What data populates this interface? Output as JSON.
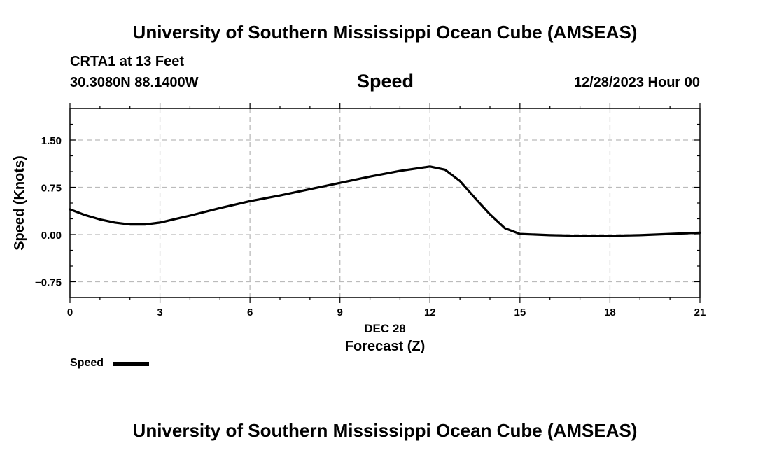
{
  "header": {
    "title_top": "University of Southern Mississippi Ocean Cube (AMSEAS)",
    "station": "CRTA1 at 13 Feet",
    "coords": "30.3080N  88.1400W",
    "variable": "Speed",
    "datetime": "12/28/2023 Hour 00",
    "title_bottom": "University of Southern Mississippi Ocean Cube (AMSEAS)"
  },
  "legend": {
    "label": "Speed"
  },
  "colors": {
    "line": "#000000",
    "grid": "#bbbbbb",
    "axis": "#000000"
  },
  "chart_data": {
    "type": "line",
    "title": "Speed",
    "xlabel": "Forecast (Z)",
    "xsublabel": "DEC 28",
    "ylabel": "Speed (Knots)",
    "xlim": [
      0,
      21
    ],
    "ylim": [
      -1.0,
      2.0
    ],
    "xticks": [
      0,
      3,
      6,
      9,
      12,
      15,
      18,
      21
    ],
    "yticks": [
      -0.75,
      0.0,
      0.75,
      1.5
    ],
    "ytick_labels": [
      "−0.75",
      "0.00",
      "0.75",
      "1.50"
    ],
    "grid": true,
    "series": [
      {
        "name": "Speed",
        "x": [
          0,
          0.5,
          1,
          1.5,
          2,
          2.5,
          3,
          4,
          5,
          6,
          7,
          8,
          9,
          10,
          11,
          12,
          12.5,
          13,
          13.5,
          14,
          14.5,
          15,
          16,
          17,
          18,
          19,
          20,
          21
        ],
        "y": [
          0.4,
          0.31,
          0.24,
          0.19,
          0.16,
          0.16,
          0.19,
          0.3,
          0.42,
          0.53,
          0.62,
          0.72,
          0.82,
          0.92,
          1.01,
          1.08,
          1.03,
          0.85,
          0.58,
          0.32,
          0.1,
          0.01,
          -0.01,
          -0.02,
          -0.02,
          -0.01,
          0.01,
          0.03
        ]
      }
    ]
  }
}
